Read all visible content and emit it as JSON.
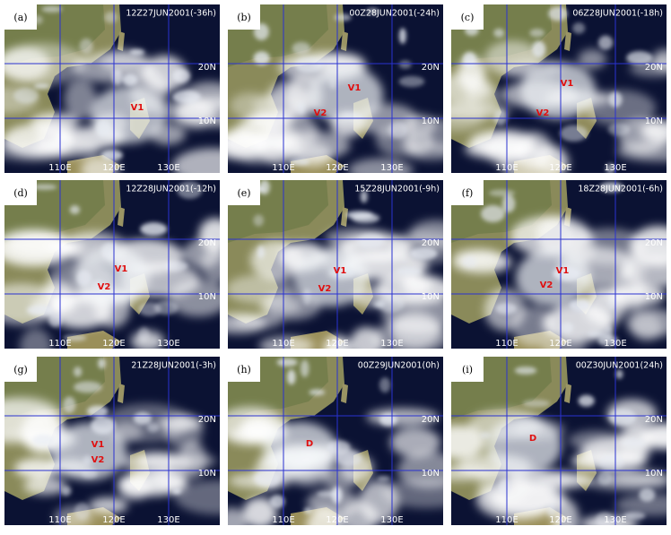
{
  "panels": [
    {
      "label": "(a)",
      "time": "12Z27JUN2001(-36h)",
      "markers": [
        "V1"
      ]
    },
    {
      "label": "(b)",
      "time": "00Z28JUN2001(-24h)",
      "markers": [
        "V1",
        "V2"
      ]
    },
    {
      "label": "(c)",
      "time": "06Z28JUN2001(-18h)",
      "markers": [
        "V1",
        "V2"
      ]
    },
    {
      "label": "(d)",
      "time": "12Z28JUN2001(-12h)",
      "markers": [
        "V1",
        "V2"
      ]
    },
    {
      "label": "(e)",
      "time": "15Z28JUN2001(-9h)",
      "markers": [
        "V1",
        "V2"
      ]
    },
    {
      "label": "(f)",
      "time": "18Z28JUN2001(-6h)",
      "markers": [
        "V1",
        "V2"
      ]
    },
    {
      "label": "(g)",
      "time": "21Z28JUN2001(-3h)",
      "markers": [
        "V1",
        "V2"
      ]
    },
    {
      "label": "(h)",
      "time": "00Z29JUN2001(0h)",
      "markers": [
        "D"
      ]
    },
    {
      "label": "(i)",
      "time": "00Z30JUN2001(24h)",
      "markers": [
        "D"
      ]
    }
  ],
  "grid_labels": {
    "lat": [
      "20N",
      "10N"
    ],
    "lon": [
      "110E",
      "120E",
      "130E"
    ]
  }
}
